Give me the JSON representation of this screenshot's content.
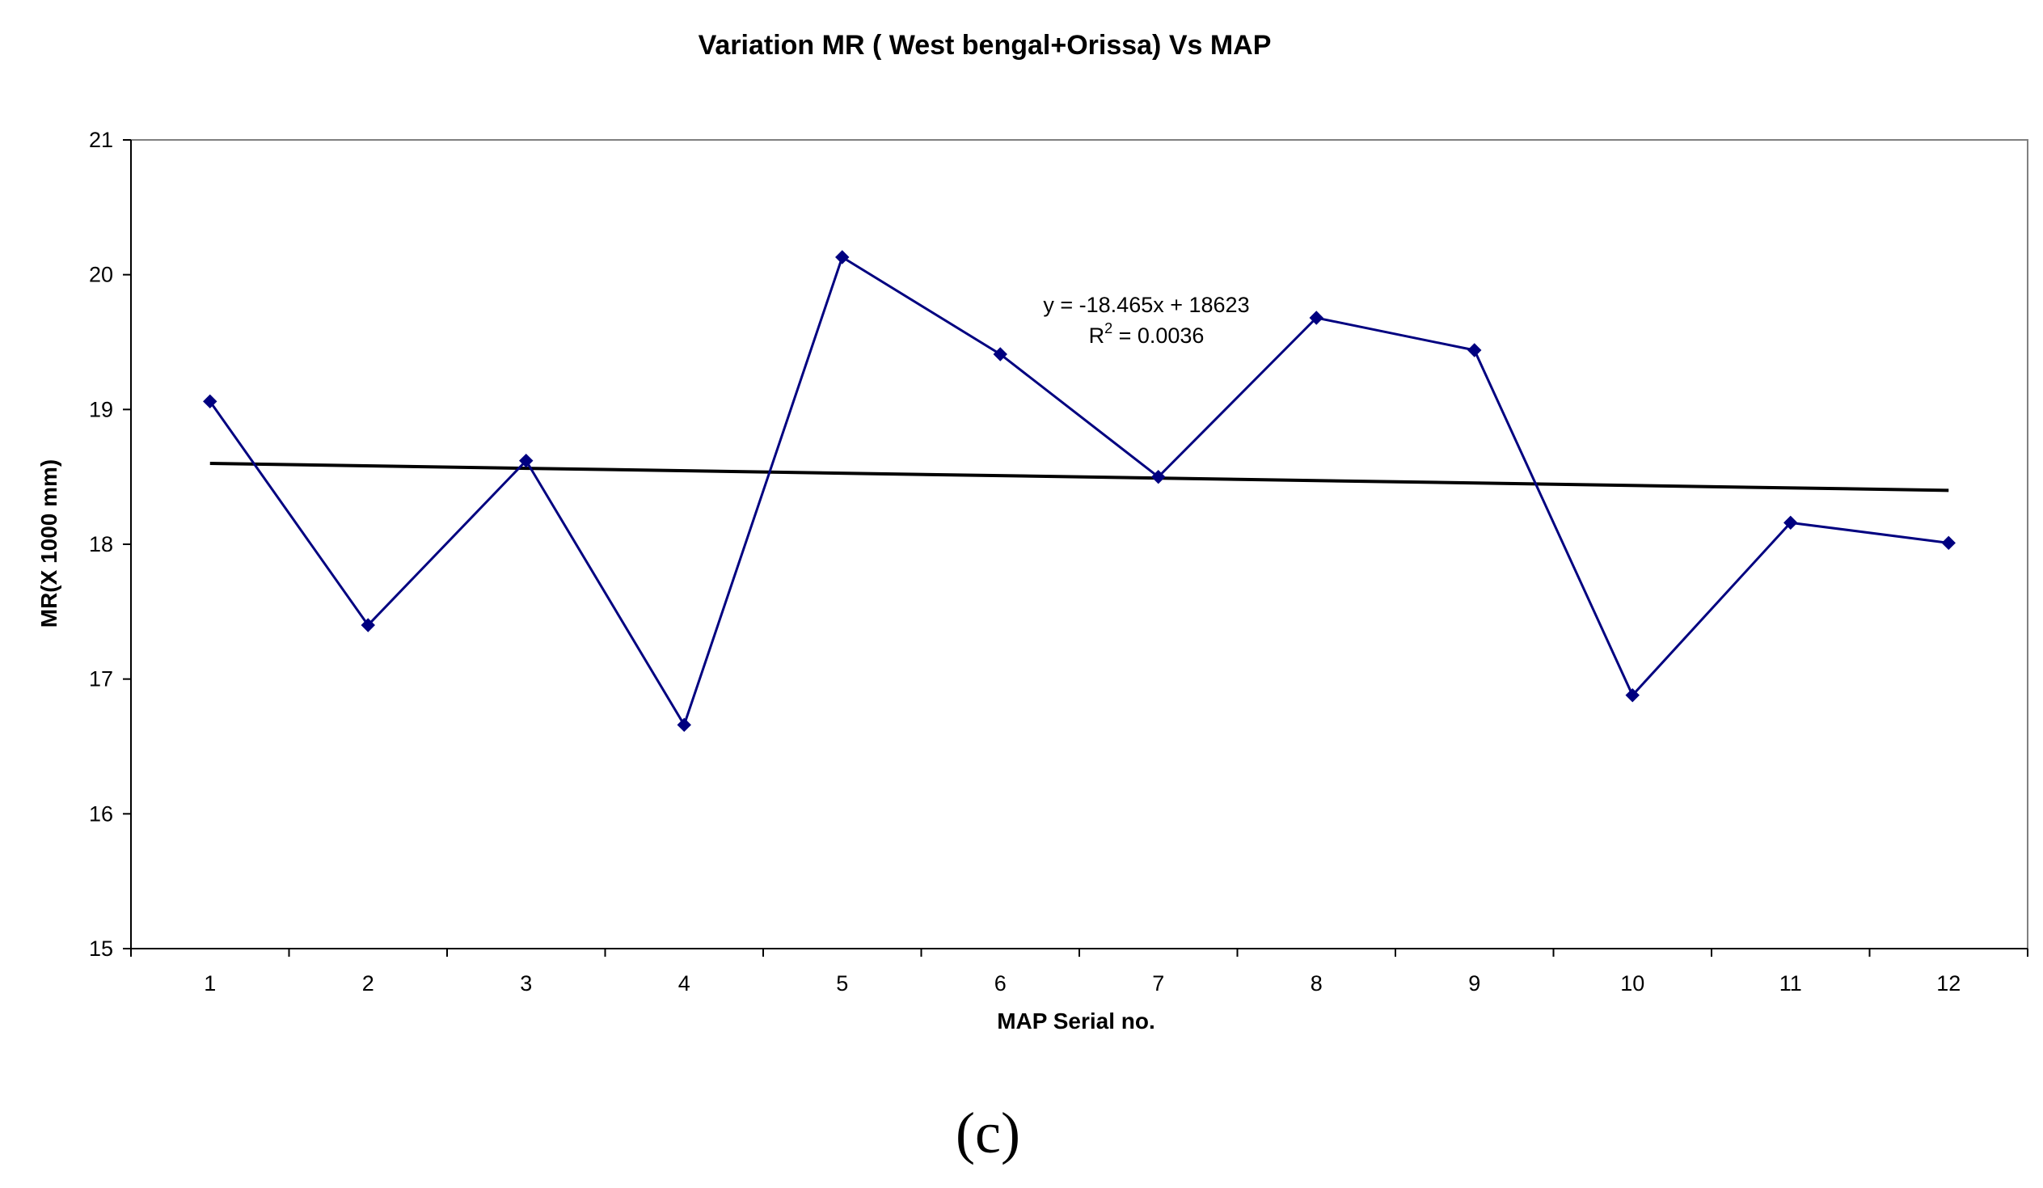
{
  "chart_data": {
    "type": "line",
    "title": "Variation MR ( West bengal+Orissa) Vs MAP",
    "xlabel": "MAP Serial no.",
    "ylabel": "MR(X 1000 mm)",
    "categories": [
      "1",
      "2",
      "3",
      "4",
      "5",
      "6",
      "7",
      "8",
      "9",
      "10",
      "11",
      "12"
    ],
    "ylim": [
      15,
      21
    ],
    "yticks": [
      "15",
      "16",
      "17",
      "18",
      "19",
      "20",
      "21"
    ],
    "series": [
      {
        "name": "MR",
        "color": "#000080",
        "values": [
          19.06,
          17.4,
          18.62,
          16.66,
          20.13,
          19.41,
          18.5,
          19.68,
          19.44,
          16.88,
          18.16,
          18.01
        ]
      }
    ],
    "trendline": {
      "type": "linear",
      "color": "#000000",
      "start": 18.6,
      "end": 18.4,
      "equation": "y = -18.465x + 18623",
      "r2_label": "R",
      "r2_sup": "2",
      "r2_value": " = 0.0036"
    },
    "caption": "(c)"
  }
}
